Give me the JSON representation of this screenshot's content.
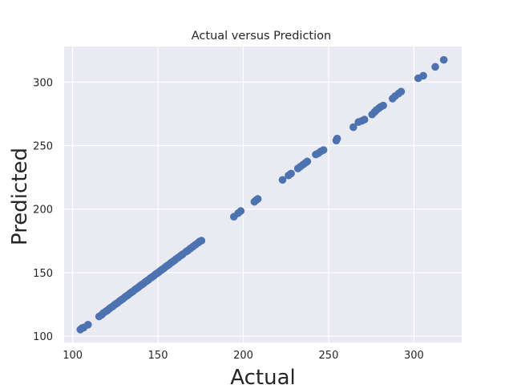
{
  "chart_data": {
    "type": "scatter",
    "title": "Actual versus Prediction",
    "xlabel": "Actual",
    "ylabel": "Predicted",
    "xlim": [
      95,
      328
    ],
    "ylim": [
      95,
      328
    ],
    "xticks": [
      100,
      150,
      200,
      250,
      300
    ],
    "yticks": [
      100,
      150,
      200,
      250,
      300
    ],
    "grid": true,
    "colors": {
      "background": "#eaeaf2",
      "point": "#4c72b0"
    },
    "series": [
      {
        "points": [
          [
            104.5,
            105.2
          ],
          [
            105.5,
            106.3
          ],
          [
            106.5,
            106.8
          ],
          [
            109,
            109
          ],
          [
            115.5,
            115.5
          ],
          [
            117,
            116.8
          ],
          [
            118,
            118.2
          ],
          [
            119.5,
            119.5
          ],
          [
            120.5,
            120.4
          ],
          [
            121.5,
            121.6
          ],
          [
            122.5,
            122.6
          ],
          [
            123.5,
            123.4
          ],
          [
            124.5,
            124.6
          ],
          [
            125.5,
            125.5
          ],
          [
            126.5,
            126.4
          ],
          [
            127.5,
            127.6
          ],
          [
            128.5,
            128.5
          ],
          [
            129.5,
            129.4
          ],
          [
            130.5,
            130.6
          ],
          [
            131.5,
            131.5
          ],
          [
            132.5,
            132.4
          ],
          [
            133.5,
            133.6
          ],
          [
            134.5,
            134.5
          ],
          [
            135.5,
            135.4
          ],
          [
            136.5,
            136.6
          ],
          [
            137.5,
            137.5
          ],
          [
            138.5,
            138.4
          ],
          [
            139.5,
            139.6
          ],
          [
            140.5,
            140.5
          ],
          [
            141.5,
            141.4
          ],
          [
            142.5,
            142.6
          ],
          [
            143.5,
            143.5
          ],
          [
            144.5,
            144.4
          ],
          [
            145.5,
            145.6
          ],
          [
            146.5,
            146.5
          ],
          [
            147.5,
            147.4
          ],
          [
            148.5,
            148.6
          ],
          [
            149.5,
            149.5
          ],
          [
            150.5,
            150.4
          ],
          [
            151.5,
            151.6
          ],
          [
            152.5,
            152.5
          ],
          [
            153.5,
            153.4
          ],
          [
            154.5,
            154.6
          ],
          [
            155.5,
            155.5
          ],
          [
            156.5,
            156.4
          ],
          [
            157.5,
            157.6
          ],
          [
            158.5,
            158.5
          ],
          [
            159.5,
            159.4
          ],
          [
            160.5,
            160.6
          ],
          [
            162,
            162
          ],
          [
            163.5,
            163.5
          ],
          [
            164.5,
            164.5
          ],
          [
            166.5,
            166.5
          ],
          [
            167.5,
            167.4
          ],
          [
            169,
            169
          ],
          [
            170.5,
            170.5
          ],
          [
            172,
            172
          ],
          [
            173.5,
            173.5
          ],
          [
            174.5,
            174.6
          ],
          [
            175.5,
            175.2
          ],
          [
            194.5,
            194
          ],
          [
            197,
            196.8
          ],
          [
            198.5,
            198.5
          ],
          [
            206.5,
            205.8
          ],
          [
            207.5,
            207
          ],
          [
            208.5,
            208
          ],
          [
            223,
            223
          ],
          [
            226.5,
            226.5
          ],
          [
            228,
            228
          ],
          [
            232,
            232
          ],
          [
            233.5,
            233.5
          ],
          [
            235,
            235
          ],
          [
            236.5,
            236.5
          ],
          [
            237.5,
            237.5
          ],
          [
            242.5,
            243
          ],
          [
            244,
            244
          ],
          [
            245.5,
            245.5
          ],
          [
            247,
            246.5
          ],
          [
            254.5,
            254
          ],
          [
            255,
            255.5
          ],
          [
            264.5,
            264.5
          ],
          [
            267.5,
            268.5
          ],
          [
            269.5,
            269.5
          ],
          [
            271,
            270.5
          ],
          [
            275.5,
            274.5
          ],
          [
            277,
            276.5
          ],
          [
            278,
            278
          ],
          [
            279.5,
            279.5
          ],
          [
            280.5,
            280.5
          ],
          [
            282,
            281.5
          ],
          [
            287.5,
            287
          ],
          [
            289,
            289
          ],
          [
            291,
            291
          ],
          [
            292.5,
            292.5
          ],
          [
            302.5,
            303
          ],
          [
            305.5,
            305
          ],
          [
            312.5,
            312
          ],
          [
            317.5,
            317.5
          ]
        ]
      }
    ]
  }
}
